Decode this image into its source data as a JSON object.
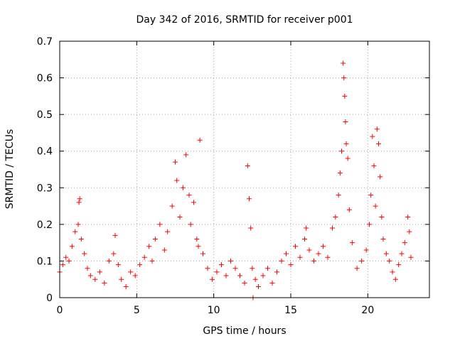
{
  "chart_data": {
    "type": "scatter",
    "title": "Day 342 of 2016, SRMTID for receiver p001",
    "xlabel": "GPS time / hours",
    "ylabel": "SRMTID / TECUs",
    "xlim": [
      0,
      24
    ],
    "ylim": [
      0,
      0.7
    ],
    "xticks": [
      0,
      5,
      10,
      15,
      20
    ],
    "xtick_labels": [
      "0",
      "5",
      "10",
      "15",
      "20"
    ],
    "yticks": [
      0,
      0.1,
      0.2,
      0.3,
      0.4,
      0.5,
      0.6,
      0.7
    ],
    "ytick_labels": [
      "0",
      "0.1",
      "0.2",
      "0.3",
      "0.4",
      "0.5",
      "0.6",
      "0.7"
    ],
    "grid": true,
    "marker": "plus",
    "color": "#ff0000",
    "series": [
      {
        "name": "SRMTID",
        "x": [
          0.0,
          0.2,
          0.4,
          0.6,
          0.8,
          1.0,
          1.2,
          1.25,
          1.3,
          1.4,
          1.6,
          1.8,
          2.0,
          2.3,
          2.6,
          2.9,
          3.2,
          3.5,
          3.6,
          3.8,
          4.0,
          4.3,
          4.6,
          4.9,
          5.2,
          5.5,
          5.8,
          6.0,
          6.2,
          6.5,
          6.8,
          7.0,
          7.3,
          7.5,
          7.6,
          7.8,
          8.0,
          8.2,
          8.4,
          8.5,
          8.7,
          8.9,
          9.0,
          9.1,
          9.3,
          9.6,
          9.9,
          10.2,
          10.5,
          10.8,
          11.1,
          11.4,
          11.7,
          12.0,
          12.2,
          12.3,
          12.4,
          12.5,
          12.55,
          12.7,
          12.9,
          13.2,
          13.5,
          13.8,
          14.1,
          14.4,
          14.7,
          15.0,
          15.3,
          15.6,
          15.9,
          16.0,
          16.2,
          16.5,
          16.8,
          17.1,
          17.4,
          17.7,
          17.9,
          18.1,
          18.2,
          18.3,
          18.4,
          18.45,
          18.5,
          18.55,
          18.6,
          18.7,
          18.8,
          19.0,
          19.3,
          19.6,
          19.9,
          20.1,
          20.2,
          20.3,
          20.4,
          20.5,
          20.6,
          20.7,
          20.8,
          20.9,
          21.0,
          21.2,
          21.4,
          21.6,
          21.8,
          22.0,
          22.2,
          22.4,
          22.6,
          22.7,
          22.8
        ],
        "y": [
          0.07,
          0.09,
          0.11,
          0.1,
          0.14,
          0.18,
          0.2,
          0.26,
          0.27,
          0.16,
          0.12,
          0.08,
          0.06,
          0.05,
          0.07,
          0.04,
          0.1,
          0.12,
          0.17,
          0.09,
          0.05,
          0.03,
          0.07,
          0.06,
          0.09,
          0.11,
          0.14,
          0.1,
          0.16,
          0.2,
          0.13,
          0.18,
          0.25,
          0.37,
          0.32,
          0.22,
          0.3,
          0.39,
          0.28,
          0.2,
          0.26,
          0.16,
          0.14,
          0.43,
          0.12,
          0.08,
          0.05,
          0.07,
          0.09,
          0.06,
          0.1,
          0.08,
          0.06,
          0.04,
          0.36,
          0.27,
          0.19,
          0.08,
          0.0,
          0.05,
          0.03,
          0.06,
          0.08,
          0.04,
          0.07,
          0.1,
          0.12,
          0.09,
          0.14,
          0.11,
          0.16,
          0.19,
          0.13,
          0.1,
          0.12,
          0.14,
          0.11,
          0.19,
          0.22,
          0.28,
          0.34,
          0.4,
          0.64,
          0.6,
          0.55,
          0.48,
          0.42,
          0.38,
          0.24,
          0.15,
          0.08,
          0.1,
          0.13,
          0.2,
          0.28,
          0.44,
          0.36,
          0.25,
          0.46,
          0.42,
          0.33,
          0.22,
          0.16,
          0.12,
          0.1,
          0.07,
          0.05,
          0.09,
          0.12,
          0.15,
          0.22,
          0.18,
          0.11
        ]
      }
    ]
  }
}
